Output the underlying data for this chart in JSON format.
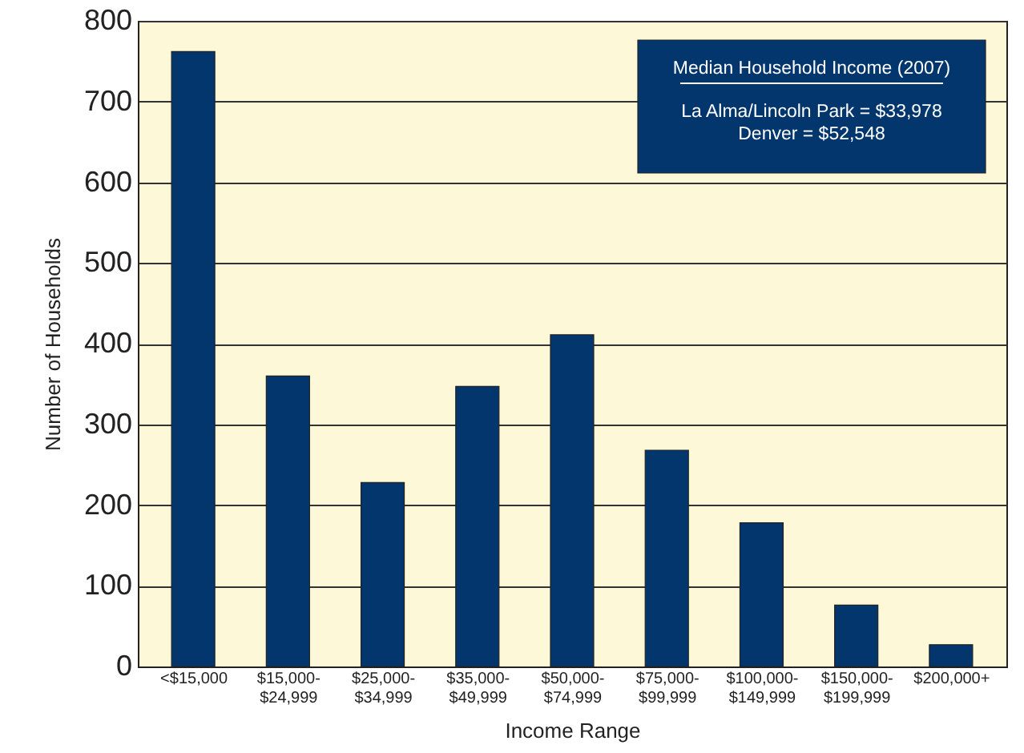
{
  "chart_data": {
    "type": "bar",
    "categories": [
      "<$15,000",
      "$15,000-$24,999",
      "$25,000-$34,999",
      "$35,000-$49,999",
      "$50,000-$74,999",
      "$75,000-$99,999",
      "$100,000-$149,999",
      "$150,000-$199,999",
      "$200,000+"
    ],
    "values": [
      762,
      360,
      228,
      347,
      411,
      268,
      178,
      76,
      27
    ],
    "color": "#03366c",
    "xlabel": "Income Range",
    "ylabel": "Number of Households",
    "ylim": [
      0,
      800
    ],
    "yticks": [
      0,
      100,
      200,
      300,
      400,
      500,
      600,
      700,
      800
    ],
    "grid": "y",
    "annotations": [
      "Median Household Income (2007)",
      "La Alma/Lincoln Park = $33,978",
      "Denver = $52,548"
    ]
  }
}
